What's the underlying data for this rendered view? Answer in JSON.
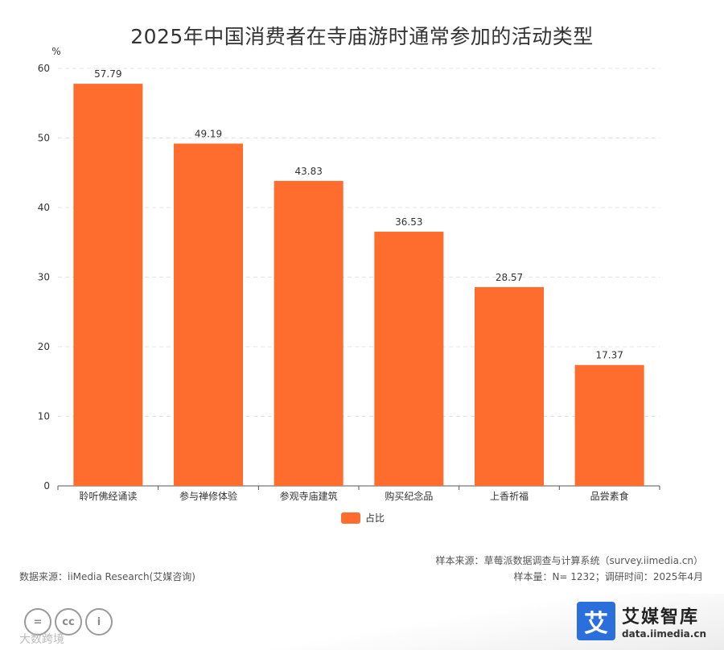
{
  "chart_data": {
    "type": "bar",
    "title": "2025年中国消费者在寺庙游时通常参加的活动类型",
    "ylabel": "%",
    "ylim": [
      0,
      60
    ],
    "yticks": [
      0,
      10,
      20,
      30,
      40,
      50,
      60
    ],
    "categories": [
      "聆听佛经诵读",
      "参与禅修体验",
      "参观寺庙建筑",
      "购买纪念品",
      "上香祈福",
      "品尝素食"
    ],
    "series": [
      {
        "name": "占比",
        "values": [
          57.79,
          49.19,
          43.83,
          36.53,
          28.57,
          17.37
        ],
        "value_labels": [
          "57.79",
          "49.19",
          "43.83",
          "36.53",
          "28.57",
          "17.37"
        ]
      }
    ],
    "grid": true,
    "legend": "bottom-center",
    "colors": {
      "bar": "#FF6D2E"
    }
  },
  "footer": {
    "source": "数据来源：iiMedia Research(艾媒咨询)",
    "sample_source": "样本来源：草莓派数据调查与计算系统（survey.iimedia.cn）",
    "sample_info": "样本量：N= 1232；调研时间：2025年4月"
  },
  "brand": {
    "mark": "艾",
    "name": "艾媒智库",
    "url": "data.iimedia.cn"
  },
  "license_icons": [
    "=",
    "cc",
    "i"
  ],
  "watermark": "大数跨境"
}
